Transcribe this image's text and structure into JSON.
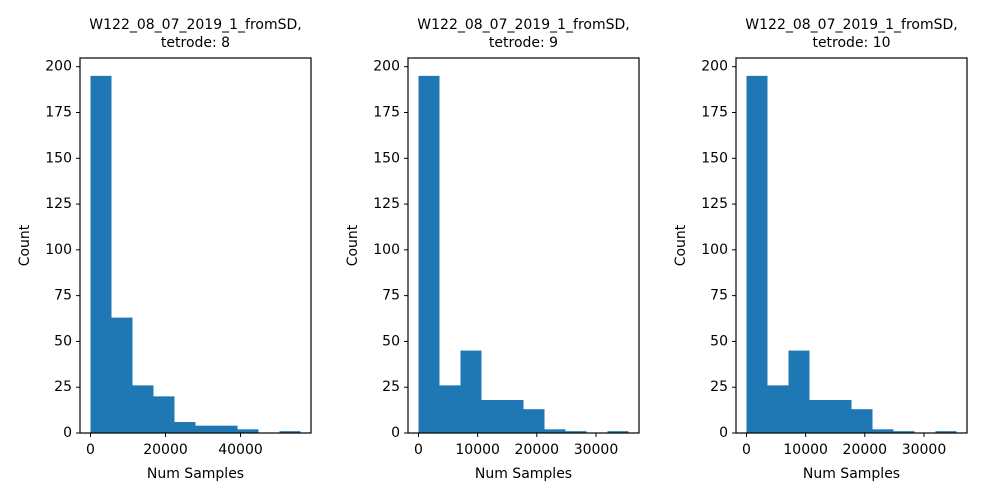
{
  "chart_data": [
    {
      "type": "histogram",
      "title": [
        "W122_08_07_2019_1_fromSD,",
        "tetrode: 8"
      ],
      "x_label": "Num Samples",
      "y_label": "Count",
      "color": "#1f77b4",
      "bins": [
        0,
        5600,
        11200,
        16800,
        22400,
        28000,
        33600,
        39200,
        44800,
        50400,
        56000
      ],
      "values": [
        195,
        63,
        26,
        20,
        6,
        4,
        4,
        2,
        0,
        1
      ],
      "xlim": [
        -2800,
        58800
      ],
      "xticks": [
        0,
        20000,
        40000
      ],
      "ylim": [
        0,
        204.75
      ],
      "yticks": [
        0,
        25,
        50,
        75,
        100,
        125,
        150,
        175,
        200
      ]
    },
    {
      "type": "histogram",
      "title": [
        "W122_08_07_2019_1_fromSD,",
        "tetrode: 9"
      ],
      "x_label": "Num Samples",
      "y_label": "Count",
      "color": "#1f77b4",
      "bins": [
        0,
        3550,
        7100,
        10650,
        14200,
        17750,
        21300,
        24850,
        28400,
        31950,
        35500
      ],
      "values": [
        195,
        26,
        45,
        18,
        18,
        13,
        2,
        1,
        0,
        1
      ],
      "xlim": [
        -1775,
        37275
      ],
      "xticks": [
        0,
        10000,
        20000,
        30000
      ],
      "ylim": [
        0,
        204.75
      ],
      "yticks": [
        0,
        25,
        50,
        75,
        100,
        125,
        150,
        175,
        200
      ]
    },
    {
      "type": "histogram",
      "title": [
        "W122_08_07_2019_1_fromSD,",
        "tetrode: 10"
      ],
      "x_label": "Num Samples",
      "y_label": "Count",
      "color": "#1f77b4",
      "bins": [
        0,
        3550,
        7100,
        10650,
        14200,
        17750,
        21300,
        24850,
        28400,
        31950,
        35500
      ],
      "values": [
        195,
        26,
        45,
        18,
        18,
        13,
        2,
        1,
        0,
        1
      ],
      "xlim": [
        -1775,
        37275
      ],
      "xticks": [
        0,
        10000,
        20000,
        30000
      ],
      "ylim": [
        0,
        204.75
      ],
      "yticks": [
        0,
        25,
        50,
        75,
        100,
        125,
        150,
        175,
        200
      ]
    }
  ]
}
